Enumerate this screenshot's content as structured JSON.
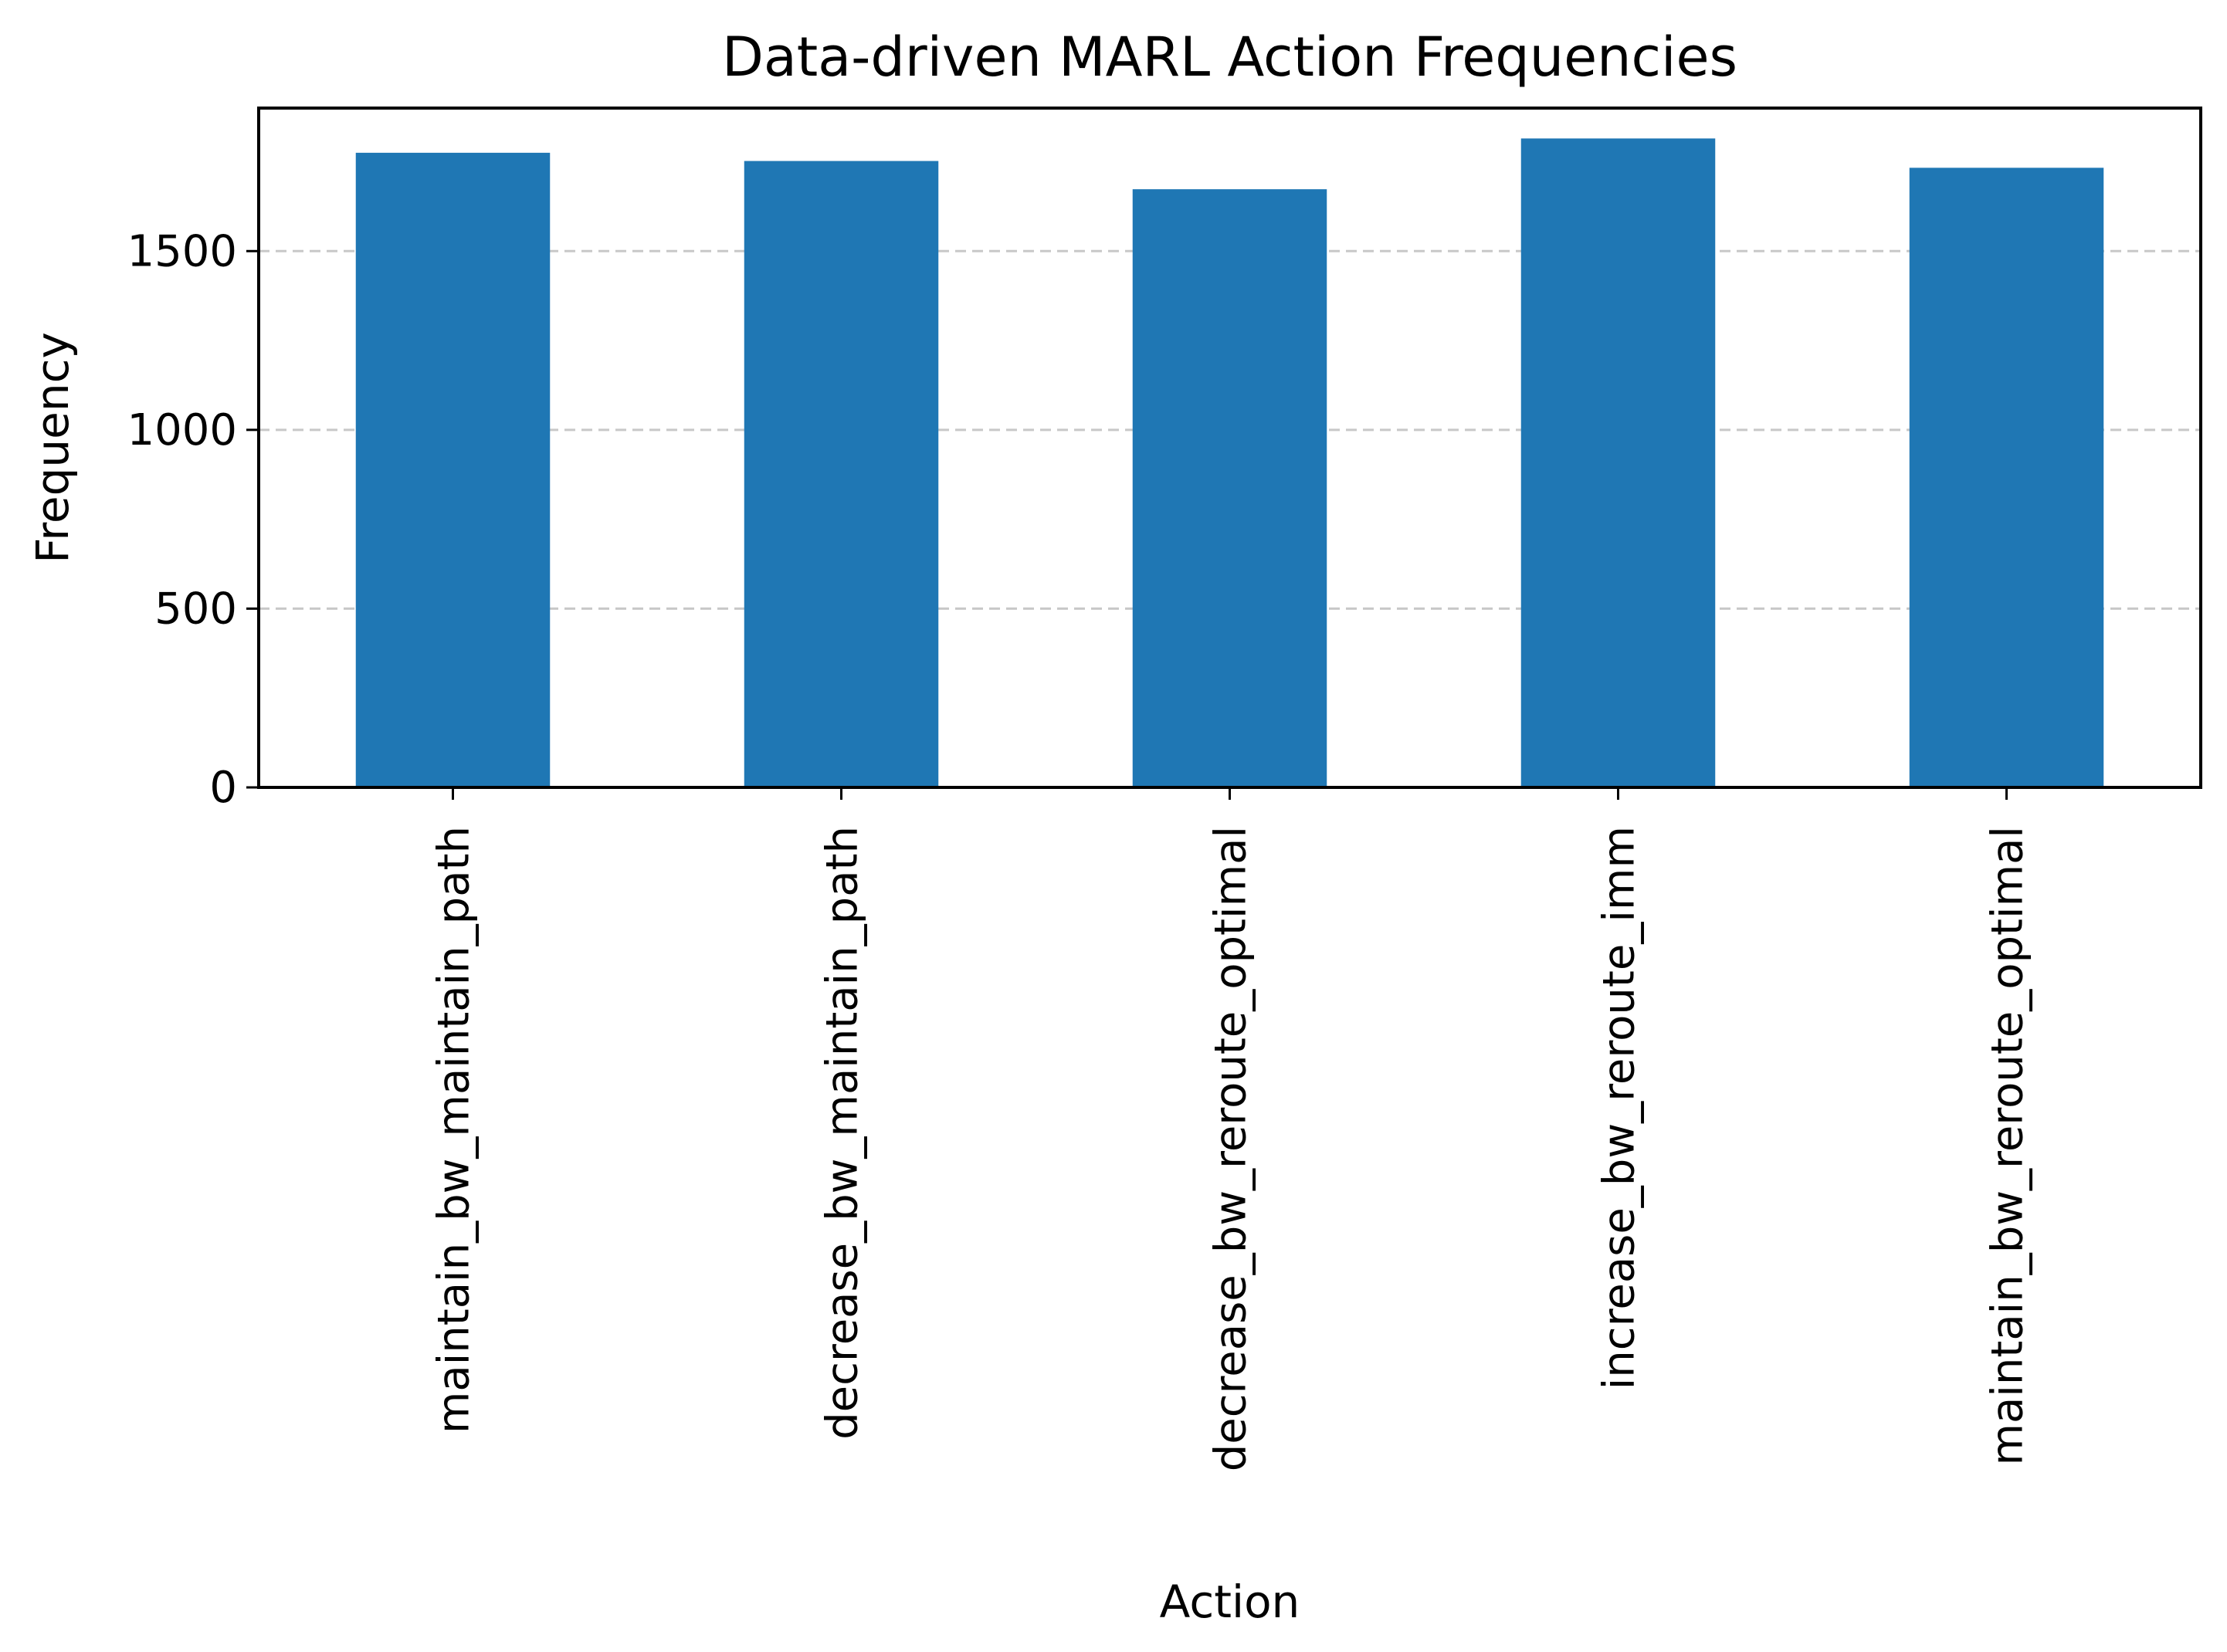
{
  "chart_data": {
    "type": "bar",
    "title": "Data-driven MARL Action Frequencies",
    "xlabel": "Action",
    "ylabel": "Frequency",
    "categories": [
      "maintain_bw_maintain_path",
      "decrease_bw_maintain_path",
      "decrease_bw_reroute_optimal",
      "increase_bw_reroute_imm",
      "maintain_bw_reroute_optimal"
    ],
    "values": [
      1775,
      1752,
      1673,
      1815,
      1733
    ],
    "ylim": [
      0,
      1900
    ],
    "yticks": [
      0,
      500,
      1000,
      1500
    ],
    "grid": "y-dashed",
    "bar_color": "#1f77b4",
    "grid_color": "#c8c8c8",
    "legend": "none"
  }
}
